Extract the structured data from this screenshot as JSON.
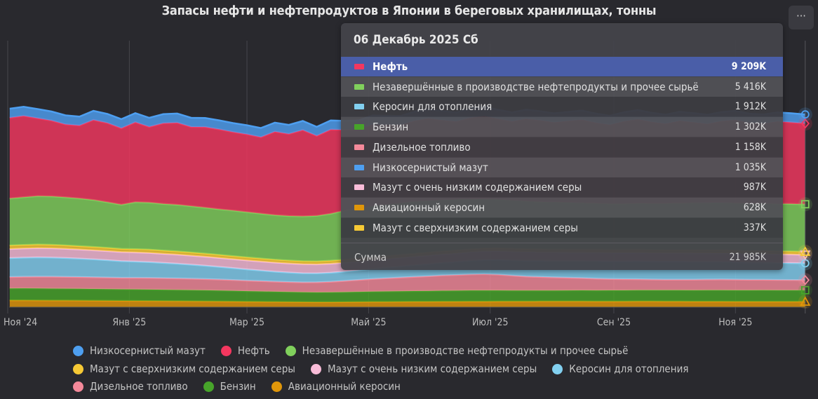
{
  "title": "Запасы нефти и нефтепродуктов в Японии в береговых хранилищах, тонны",
  "menu_icon": "more-horizontal-icon",
  "menu_label": "···",
  "chart_data": {
    "type": "area",
    "stacked": true,
    "title": "Запасы нефти и нефтепродуктов в Японии в береговых хранилищах, тонны",
    "x_start": "2024-11-02",
    "x_step_days": 7,
    "x_end": "2025-12-06",
    "ylim": [
      0,
      30000
    ],
    "y_unit": "K",
    "y_axis_visible": false,
    "grid": "vertical",
    "legend_position": "bottom",
    "x_ticks": [
      {
        "date": "2024-11-01",
        "label": "Ноя '24"
      },
      {
        "date": "2025-01-01",
        "label": "Янв '25"
      },
      {
        "date": "2025-03-01",
        "label": "Мар '25"
      },
      {
        "date": "2025-05-01",
        "label": "Май '25"
      },
      {
        "date": "2025-07-01",
        "label": "Июл '25"
      },
      {
        "date": "2025-09-01",
        "label": "Сен '25"
      },
      {
        "date": "2025-11-01",
        "label": "Ноя '25"
      }
    ],
    "series": [
      {
        "name": "Авиационный керосин",
        "color": "#e0960a",
        "marker": "triangle",
        "values": [
          780,
          780,
          770,
          760,
          760,
          750,
          740,
          730,
          720,
          710,
          700,
          690,
          680,
          670,
          660,
          650,
          640,
          620,
          610,
          600,
          590,
          580,
          570,
          570,
          580,
          590,
          600,
          600,
          610,
          620,
          620,
          630,
          630,
          640,
          640,
          650,
          650,
          650,
          660,
          660,
          660,
          660,
          650,
          650,
          650,
          660,
          660,
          650,
          650,
          640,
          640,
          640,
          630,
          630,
          630,
          630,
          630,
          628
        ]
      },
      {
        "name": "Бензин",
        "color": "#47a42a",
        "marker": "square",
        "values": [
          1360,
          1370,
          1370,
          1360,
          1350,
          1350,
          1340,
          1330,
          1320,
          1320,
          1310,
          1300,
          1290,
          1280,
          1270,
          1250,
          1230,
          1210,
          1190,
          1170,
          1150,
          1130,
          1120,
          1130,
          1140,
          1160,
          1180,
          1200,
          1210,
          1220,
          1230,
          1250,
          1260,
          1270,
          1270,
          1260,
          1250,
          1250,
          1240,
          1240,
          1250,
          1260,
          1260,
          1270,
          1270,
          1280,
          1280,
          1290,
          1290,
          1290,
          1300,
          1300,
          1300,
          1300,
          1310,
          1300,
          1300,
          1302
        ]
      },
      {
        "name": "Дизельное топливо",
        "color": "#f4899a",
        "marker": "diamond",
        "values": [
          1300,
          1320,
          1340,
          1360,
          1350,
          1340,
          1330,
          1320,
          1310,
          1320,
          1330,
          1320,
          1310,
          1300,
          1280,
          1260,
          1230,
          1200,
          1180,
          1150,
          1130,
          1120,
          1150,
          1200,
          1280,
          1360,
          1440,
          1500,
          1560,
          1620,
          1680,
          1740,
          1780,
          1820,
          1850,
          1800,
          1700,
          1600,
          1550,
          1500,
          1450,
          1400,
          1350,
          1300,
          1280,
          1250,
          1220,
          1200,
          1200,
          1210,
          1220,
          1230,
          1220,
          1200,
          1190,
          1180,
          1170,
          1158
        ]
      },
      {
        "name": "Керосин для отопления",
        "color": "#82d0f0",
        "marker": "circle",
        "values": [
          2160,
          2180,
          2200,
          2180,
          2150,
          2100,
          2050,
          1980,
          1900,
          1850,
          1800,
          1740,
          1680,
          1600,
          1520,
          1440,
          1360,
          1280,
          1200,
          1130,
          1080,
          1040,
          1020,
          1030,
          1060,
          1100,
          1150,
          1200,
          1260,
          1320,
          1380,
          1440,
          1500,
          1560,
          1620,
          1680,
          1730,
          1780,
          1820,
          1860,
          1900,
          1940,
          1970,
          2000,
          2020,
          2040,
          2050,
          2060,
          2050,
          2040,
          2020,
          2000,
          1990,
          1970,
          1960,
          1940,
          1930,
          1912
        ]
      },
      {
        "name": "Мазут с очень низким содержанием серы",
        "color": "#f9bcd8",
        "marker": "triangle-down",
        "values": [
          1040,
          1050,
          1060,
          1060,
          1050,
          1040,
          1030,
          1040,
          1040,
          1050,
          1050,
          1040,
          1040,
          1030,
          1030,
          1020,
          1020,
          1030,
          1030,
          1040,
          1040,
          1040,
          1030,
          1030,
          1020,
          1010,
          1010,
          1000,
          1000,
          990,
          990,
          980,
          980,
          990,
          1000,
          1000,
          1010,
          1010,
          1000,
          1000,
          990,
          990,
          1000,
          1000,
          990,
          990,
          980,
          980,
          990,
          990,
          990,
          990,
          1000,
          990,
          990,
          990,
          990,
          987
        ]
      },
      {
        "name": "Мазут с сверхнизким содержанием серы",
        "color": "#f6c935",
        "marker": "triangle",
        "values": [
          400,
          400,
          410,
          400,
          390,
          380,
          380,
          370,
          360,
          370,
          380,
          370,
          360,
          360,
          350,
          350,
          340,
          340,
          340,
          330,
          330,
          330,
          330,
          340,
          340,
          350,
          350,
          350,
          340,
          340,
          340,
          340,
          330,
          330,
          340,
          340,
          350,
          350,
          340,
          340,
          340,
          340,
          330,
          330,
          340,
          340,
          340,
          330,
          330,
          340,
          340,
          340,
          330,
          330,
          340,
          340,
          340,
          337
        ]
      },
      {
        "name": "Незавершённые в производстве нефтепродукты и прочее сырьё",
        "color": "#80d05c",
        "marker": "square",
        "values": [
          5360,
          5440,
          5520,
          5520,
          5480,
          5440,
          5360,
          5200,
          5040,
          5360,
          5360,
          5320,
          5320,
          5280,
          5240,
          5200,
          5200,
          5160,
          5120,
          5080,
          5080,
          5120,
          5200,
          5360,
          5600,
          5700,
          5800,
          5850,
          5900,
          5950,
          5900,
          5850,
          5800,
          5700,
          5600,
          5550,
          5500,
          5450,
          5400,
          5380,
          5350,
          5300,
          5280,
          5250,
          5250,
          5280,
          5300,
          5320,
          5350,
          5380,
          5400,
          5420,
          5400,
          5410,
          5420,
          5410,
          5420,
          5416
        ]
      },
      {
        "name": "Нефть",
        "color": "#f4375f",
        "marker": "diamond",
        "values": [
          9200,
          9280,
          8880,
          8640,
          8320,
          8320,
          9120,
          9040,
          8720,
          9120,
          8640,
          9200,
          9360,
          9040,
          9200,
          9120,
          8960,
          8880,
          8720,
          9520,
          9360,
          9840,
          9120,
          9600,
          9200,
          9000,
          9300,
          9100,
          8900,
          9200,
          9400,
          9100,
          8900,
          9300,
          9500,
          9200,
          9000,
          9400,
          9300,
          9100,
          9300,
          9500,
          9200,
          9000,
          9400,
          9600,
          9300,
          9100,
          9400,
          9200,
          9000,
          9300,
          9500,
          9200,
          9100,
          9400,
          9300,
          9209
        ]
      },
      {
        "name": "Низкосернистый мазут",
        "color": "#4e9ff0",
        "marker": "circle",
        "values": [
          1040,
          1040,
          1050,
          1040,
          1030,
          1020,
          1040,
          1030,
          1040,
          1040,
          1030,
          1040,
          1050,
          1040,
          1030,
          1020,
          1020,
          1030,
          1040,
          1030,
          1030,
          1040,
          1030,
          1040,
          1030,
          1030,
          1040,
          1040,
          1030,
          1030,
          1040,
          1030,
          1030,
          1040,
          1040,
          1030,
          1030,
          1040,
          1040,
          1030,
          1030,
          1040,
          1040,
          1030,
          1030,
          1040,
          1040,
          1030,
          1030,
          1040,
          1040,
          1030,
          1030,
          1040,
          1040,
          1030,
          1040,
          1035
        ]
      }
    ]
  },
  "tooltip": {
    "date": "06 Декабрь 2025 Сб",
    "rows": [
      {
        "name": "Нефть",
        "value": "9 209K",
        "color": "#f4375f",
        "highlighted": true
      },
      {
        "name": "Незавершённые в производстве нефтепродукты и прочее сырьё",
        "value": "5 416K",
        "color": "#80d05c"
      },
      {
        "name": "Керосин для отопления",
        "value": "1 912K",
        "color": "#82d0f0"
      },
      {
        "name": "Бензин",
        "value": "1 302K",
        "color": "#47a42a"
      },
      {
        "name": "Дизельное топливо",
        "value": "1 158K",
        "color": "#f4899a"
      },
      {
        "name": "Низкосернистый мазут",
        "value": "1 035K",
        "color": "#4e9ff0"
      },
      {
        "name": "Мазут с очень низким содержанием серы",
        "value": "987K",
        "color": "#f9bcd8"
      },
      {
        "name": "Авиационный керосин",
        "value": "628K",
        "color": "#e0960a"
      },
      {
        "name": "Мазут с сверхнизким содержанием серы",
        "value": "337K",
        "color": "#f6c935"
      }
    ],
    "sum_label": "Сумма",
    "sum_value": "21 985K"
  },
  "legend": {
    "rows": [
      [
        {
          "name": "Низкосернистый мазут",
          "color": "#4e9ff0"
        },
        {
          "name": "Нефть",
          "color": "#f4375f"
        },
        {
          "name": "Незавершённые в производстве нефтепродукты и прочее сырьё",
          "color": "#80d05c"
        }
      ],
      [
        {
          "name": "Мазут с сверхнизким содержанием серы",
          "color": "#f6c935"
        },
        {
          "name": "Мазут с очень низким содержанием серы",
          "color": "#f9bcd8"
        },
        {
          "name": "Керосин для отопления",
          "color": "#82d0f0"
        }
      ],
      [
        {
          "name": "Дизельное топливо",
          "color": "#f4899a"
        },
        {
          "name": "Бензин",
          "color": "#47a42a"
        },
        {
          "name": "Авиационный керосин",
          "color": "#e0960a"
        }
      ]
    ]
  }
}
